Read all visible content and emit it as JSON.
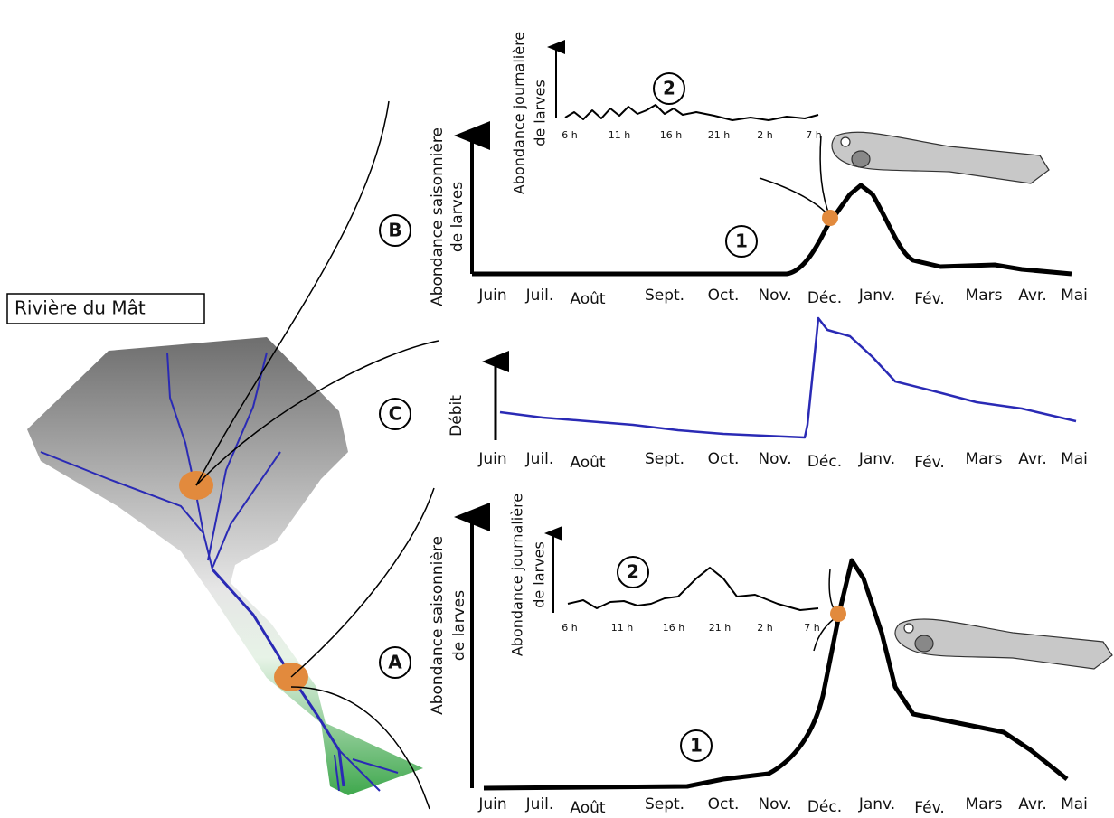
{
  "map": {
    "title": "Rivière du Mât"
  },
  "panels": [
    {
      "label": "B",
      "y_label": [
        "Abondance saisonnière",
        "de larves"
      ],
      "marker": "1",
      "months": [
        "Juin",
        "Juil.",
        "Août",
        "Sept.",
        "Oct.",
        "Nov.",
        "Déc.",
        "Janv.",
        "Fév.",
        "Mars",
        "Avr.",
        "Mai"
      ],
      "inset": {
        "marker": "2",
        "y_label": [
          "Abondance journalière",
          "de larves"
        ],
        "hours": [
          "6 h",
          "11 h",
          "16 h",
          "21 h",
          "2 h",
          "7 h"
        ]
      }
    },
    {
      "label": "C",
      "y_label": [
        "Débit"
      ],
      "months": [
        "Juin",
        "Juil.",
        "Août",
        "Sept.",
        "Oct.",
        "Nov.",
        "Déc.",
        "Janv.",
        "Fév.",
        "Mars",
        "Avr.",
        "Mai"
      ]
    },
    {
      "label": "A",
      "y_label": [
        "Abondance saisonnière",
        "de larves"
      ],
      "marker": "1",
      "months": [
        "Juin",
        "Juil.",
        "Août",
        "Sept.",
        "Oct.",
        "Nov.",
        "Déc.",
        "Janv.",
        "Fév.",
        "Mars",
        "Avr.",
        "Mai"
      ],
      "inset": {
        "marker": "2",
        "y_label": [
          "Abondance journalière",
          "de larves"
        ],
        "hours": [
          "6 h",
          "11 h",
          "16 h",
          "21 h",
          "2 h",
          "7 h"
        ]
      }
    }
  ]
}
